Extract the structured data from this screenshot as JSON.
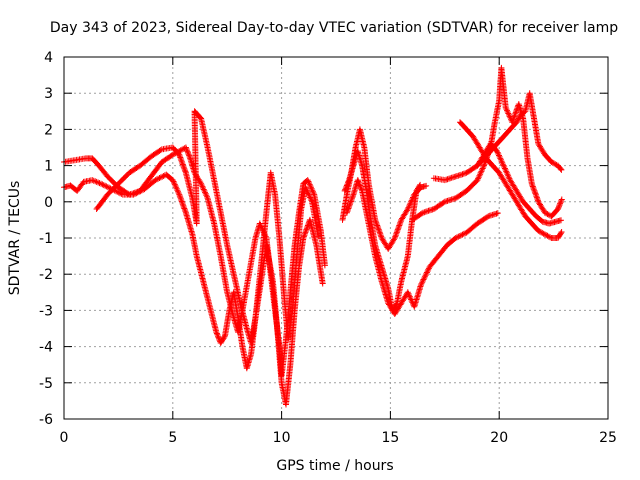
{
  "chart_data": {
    "type": "scatter",
    "title": "Day 343 of 2023, Sidereal Day-to-day VTEC variation (SDTVAR) for receiver lamp",
    "xlabel": "GPS time / hours",
    "ylabel": "SDTVAR / TECUs",
    "xlim": [
      0,
      25
    ],
    "ylim": [
      -6,
      4
    ],
    "xticks": [
      0,
      5,
      10,
      15,
      20,
      25
    ],
    "yticks": [
      -6,
      -5,
      -4,
      -3,
      -2,
      -1,
      0,
      1,
      2,
      3,
      4
    ],
    "grid": true,
    "marker": "+",
    "series_color": "#ff0000",
    "series": [
      {
        "points": [
          [
            0,
            1.1
          ],
          [
            0.5,
            1.15
          ],
          [
            1.0,
            1.2
          ],
          [
            1.3,
            1.2
          ],
          [
            1.6,
            1.0
          ],
          [
            2.0,
            0.7
          ],
          [
            2.5,
            0.4
          ],
          [
            3.0,
            0.2
          ],
          [
            3.5,
            0.3
          ],
          [
            4.0,
            0.7
          ],
          [
            4.5,
            1.1
          ],
          [
            5.0,
            1.3
          ],
          [
            5.3,
            1.4
          ],
          [
            5.6,
            1.5
          ],
          [
            5.8,
            1.2
          ],
          [
            6.0,
            0.8
          ],
          [
            6.3,
            0.5
          ],
          [
            6.6,
            0.1
          ],
          [
            6.9,
            -0.6
          ],
          [
            7.2,
            -1.5
          ],
          [
            7.5,
            -2.5
          ],
          [
            7.8,
            -3.2
          ],
          [
            8.0,
            -3.6
          ],
          [
            8.2,
            -3.0
          ],
          [
            8.5,
            -2.0
          ],
          [
            8.8,
            -1.0
          ],
          [
            9.0,
            -0.6
          ],
          [
            9.3,
            -1.0
          ],
          [
            9.5,
            -2.0
          ],
          [
            9.7,
            -3.0
          ],
          [
            9.9,
            -4.0
          ],
          [
            10.0,
            -4.8
          ],
          [
            10.2,
            -3.8
          ],
          [
            10.4,
            -2.5
          ],
          [
            10.6,
            -1.2
          ],
          [
            10.8,
            -0.3
          ],
          [
            11.0,
            0.5
          ],
          [
            11.2,
            0.6
          ],
          [
            11.5,
            0.2
          ],
          [
            11.8,
            -0.8
          ],
          [
            12.0,
            -1.8
          ]
        ]
      },
      {
        "points": [
          [
            0,
            0.4
          ],
          [
            0.3,
            0.45
          ],
          [
            0.6,
            0.3
          ],
          [
            0.9,
            0.55
          ],
          [
            1.3,
            0.6
          ],
          [
            1.7,
            0.5
          ],
          [
            2.2,
            0.35
          ],
          [
            2.7,
            0.2
          ],
          [
            3.2,
            0.2
          ],
          [
            3.7,
            0.35
          ],
          [
            4.2,
            0.6
          ],
          [
            4.7,
            0.75
          ],
          [
            5.0,
            0.6
          ],
          [
            5.3,
            0.2
          ],
          [
            5.6,
            -0.3
          ],
          [
            5.9,
            -0.9
          ],
          [
            6.1,
            -1.5
          ],
          [
            6.4,
            -2.2
          ],
          [
            6.7,
            -2.9
          ],
          [
            7.0,
            -3.6
          ],
          [
            7.2,
            -3.9
          ],
          [
            7.4,
            -3.7
          ],
          [
            7.6,
            -3.0
          ],
          [
            7.8,
            -2.5
          ],
          [
            8.0,
            -3.2
          ],
          [
            8.2,
            -4.0
          ],
          [
            8.4,
            -4.6
          ],
          [
            8.6,
            -4.2
          ],
          [
            8.8,
            -3.2
          ],
          [
            9.1,
            -2.0
          ],
          [
            9.3,
            -1.2
          ],
          [
            9.6,
            -2.2
          ],
          [
            9.8,
            -3.5
          ],
          [
            10.0,
            -5.0
          ],
          [
            10.2,
            -5.6
          ],
          [
            10.4,
            -4.5
          ],
          [
            10.6,
            -3.0
          ],
          [
            10.8,
            -1.8
          ],
          [
            11.0,
            -1.0
          ],
          [
            11.3,
            -0.5
          ],
          [
            11.6,
            -1.2
          ],
          [
            11.9,
            -2.3
          ]
        ]
      },
      {
        "points": [
          [
            1.5,
            -0.2
          ],
          [
            2.0,
            0.2
          ],
          [
            2.5,
            0.5
          ],
          [
            3.0,
            0.8
          ],
          [
            3.5,
            1.0
          ],
          [
            4.0,
            1.25
          ],
          [
            4.5,
            1.45
          ],
          [
            5.0,
            1.5
          ],
          [
            5.3,
            1.3
          ],
          [
            5.6,
            0.8
          ],
          [
            5.9,
            0.1
          ],
          [
            6.1,
            -0.6
          ],
          [
            6.0,
            2.5
          ],
          [
            6.3,
            2.3
          ],
          [
            6.6,
            1.5
          ],
          [
            6.9,
            0.6
          ],
          [
            7.2,
            -0.3
          ],
          [
            7.5,
            -1.2
          ],
          [
            7.8,
            -2.0
          ],
          [
            8.1,
            -2.8
          ],
          [
            8.4,
            -3.5
          ],
          [
            8.6,
            -3.9
          ],
          [
            8.8,
            -3.2
          ],
          [
            9.1,
            -1.5
          ],
          [
            9.3,
            -0.3
          ],
          [
            9.5,
            0.8
          ],
          [
            9.7,
            0.2
          ],
          [
            9.9,
            -1.0
          ],
          [
            10.1,
            -2.5
          ],
          [
            10.3,
            -3.8
          ],
          [
            10.5,
            -3.0
          ],
          [
            10.7,
            -1.5
          ],
          [
            10.9,
            -0.2
          ],
          [
            11.1,
            0.4
          ],
          [
            11.4,
            0.0
          ],
          [
            11.7,
            -1.0
          ]
        ]
      },
      {
        "points": [
          [
            12.8,
            -0.5
          ],
          [
            13.0,
            0.2
          ],
          [
            13.2,
            0.8
          ],
          [
            13.4,
            1.5
          ],
          [
            13.6,
            2.0
          ],
          [
            13.8,
            1.5
          ],
          [
            14.0,
            0.5
          ],
          [
            14.3,
            -0.5
          ],
          [
            14.6,
            -1.0
          ],
          [
            14.9,
            -1.3
          ],
          [
            15.2,
            -1.0
          ],
          [
            15.5,
            -0.5
          ],
          [
            15.8,
            -0.2
          ],
          [
            16.1,
            0.2
          ],
          [
            16.4,
            0.4
          ],
          [
            16.7,
            0.45
          ]
        ]
      },
      {
        "points": [
          [
            12.9,
            0.3
          ],
          [
            13.1,
            0.6
          ],
          [
            13.3,
            1.0
          ],
          [
            13.5,
            1.4
          ],
          [
            13.7,
            1.0
          ],
          [
            13.9,
            0.3
          ],
          [
            14.1,
            -0.5
          ],
          [
            14.3,
            -1.2
          ],
          [
            14.6,
            -1.8
          ],
          [
            14.9,
            -2.4
          ],
          [
            15.1,
            -3.0
          ],
          [
            15.3,
            -2.8
          ],
          [
            15.5,
            -2.2
          ],
          [
            15.8,
            -1.5
          ],
          [
            16.0,
            -0.5
          ],
          [
            16.2,
            0.3
          ],
          [
            16.4,
            0.5
          ]
        ]
      },
      {
        "points": [
          [
            13.0,
            -0.3
          ],
          [
            13.3,
            0.2
          ],
          [
            13.5,
            0.6
          ],
          [
            13.7,
            0.3
          ],
          [
            14.0,
            -0.6
          ],
          [
            14.3,
            -1.5
          ],
          [
            14.6,
            -2.2
          ],
          [
            14.9,
            -2.8
          ],
          [
            15.2,
            -3.1
          ],
          [
            15.5,
            -2.8
          ],
          [
            15.8,
            -2.5
          ],
          [
            16.1,
            -2.9
          ],
          [
            16.4,
            -2.3
          ],
          [
            16.8,
            -1.8
          ],
          [
            17.2,
            -1.5
          ],
          [
            17.6,
            -1.2
          ],
          [
            18.0,
            -1.0
          ],
          [
            18.5,
            -0.85
          ],
          [
            19.0,
            -0.6
          ],
          [
            19.5,
            -0.4
          ],
          [
            20.0,
            -0.3
          ]
        ]
      },
      {
        "points": [
          [
            16.0,
            -0.5
          ],
          [
            16.5,
            -0.3
          ],
          [
            17.0,
            -0.2
          ],
          [
            17.5,
            0.0
          ],
          [
            18.0,
            0.1
          ],
          [
            18.5,
            0.3
          ],
          [
            19.0,
            0.6
          ],
          [
            19.3,
            1.0
          ],
          [
            19.6,
            1.5
          ],
          [
            19.8,
            2.2
          ],
          [
            20.0,
            2.8
          ],
          [
            20.1,
            3.7
          ],
          [
            20.3,
            2.6
          ],
          [
            20.6,
            2.2
          ],
          [
            20.9,
            2.7
          ],
          [
            21.1,
            2.3
          ],
          [
            21.3,
            1.2
          ],
          [
            21.5,
            0.5
          ],
          [
            21.8,
            0.0
          ],
          [
            22.1,
            -0.3
          ],
          [
            22.4,
            -0.4
          ],
          [
            22.7,
            -0.2
          ],
          [
            22.9,
            0.1
          ]
        ]
      },
      {
        "points": [
          [
            17.0,
            0.65
          ],
          [
            17.5,
            0.6
          ],
          [
            18.0,
            0.7
          ],
          [
            18.5,
            0.8
          ],
          [
            19.0,
            1.0
          ],
          [
            19.3,
            1.2
          ],
          [
            19.6,
            1.4
          ],
          [
            19.9,
            1.6
          ],
          [
            20.2,
            1.8
          ],
          [
            20.5,
            2.0
          ],
          [
            20.8,
            2.2
          ],
          [
            21.0,
            2.4
          ],
          [
            21.2,
            2.5
          ],
          [
            21.4,
            3.0
          ],
          [
            21.6,
            2.3
          ],
          [
            21.8,
            1.6
          ],
          [
            22.1,
            1.3
          ],
          [
            22.4,
            1.1
          ],
          [
            22.7,
            1.0
          ],
          [
            22.9,
            0.85
          ]
        ]
      },
      {
        "points": [
          [
            18.2,
            2.2
          ],
          [
            18.5,
            2.0
          ],
          [
            18.8,
            1.8
          ],
          [
            19.1,
            1.5
          ],
          [
            19.4,
            1.2
          ],
          [
            19.7,
            1.0
          ],
          [
            20.0,
            0.8
          ],
          [
            20.3,
            0.5
          ],
          [
            20.6,
            0.2
          ],
          [
            20.9,
            -0.1
          ],
          [
            21.2,
            -0.4
          ],
          [
            21.5,
            -0.6
          ],
          [
            21.8,
            -0.8
          ],
          [
            22.1,
            -0.9
          ],
          [
            22.4,
            -1.0
          ],
          [
            22.7,
            -1.0
          ],
          [
            22.9,
            -0.8
          ]
        ]
      },
      {
        "points": [
          [
            19.0,
            1.0
          ],
          [
            19.3,
            1.3
          ],
          [
            19.6,
            1.6
          ],
          [
            19.9,
            1.4
          ],
          [
            20.2,
            1.0
          ],
          [
            20.5,
            0.6
          ],
          [
            20.8,
            0.3
          ],
          [
            21.1,
            0.0
          ],
          [
            21.4,
            -0.2
          ],
          [
            21.7,
            -0.4
          ],
          [
            22.0,
            -0.55
          ],
          [
            22.3,
            -0.6
          ],
          [
            22.6,
            -0.55
          ],
          [
            22.9,
            -0.5
          ]
        ]
      }
    ]
  }
}
